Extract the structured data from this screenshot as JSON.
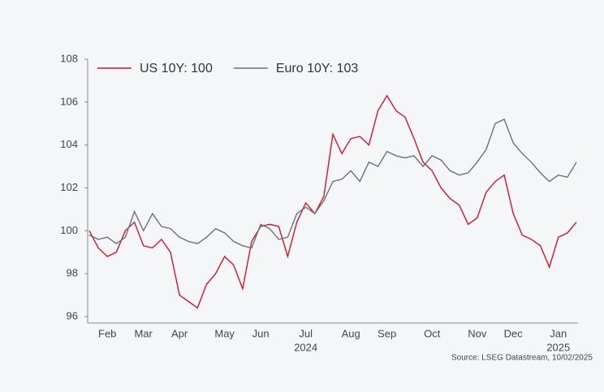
{
  "chart_data": {
    "type": "line",
    "categories": [
      null,
      null,
      "Feb",
      null,
      null,
      null,
      "Mar",
      null,
      null,
      null,
      "Apr",
      null,
      null,
      null,
      null,
      "May",
      null,
      null,
      null,
      "Jun",
      null,
      null,
      null,
      null,
      "Jul",
      null,
      null,
      null,
      null,
      "Aug",
      null,
      null,
      null,
      "Sep",
      null,
      null,
      null,
      null,
      "Oct",
      null,
      null,
      null,
      null,
      "Nov",
      null,
      null,
      null,
      "Dec",
      null,
      null,
      null,
      null,
      "Jan",
      null,
      null
    ],
    "series": [
      {
        "name": "US 10Y: 100",
        "color": "#d7142e",
        "values": [
          100,
          99.2,
          98.8,
          99.0,
          100.0,
          100.4,
          99.3,
          99.2,
          99.6,
          99.0,
          97.0,
          96.7,
          96.4,
          97.5,
          98.0,
          98.8,
          98.4,
          97.3,
          99.5,
          100.2,
          100.3,
          100.2,
          98.8,
          100.4,
          101.3,
          100.8,
          101.6,
          104.5,
          103.6,
          104.3,
          104.4,
          104.0,
          105.6,
          106.3,
          105.6,
          105.3,
          104.3,
          103.2,
          102.8,
          102.0,
          101.5,
          101.2,
          100.3,
          100.6,
          101.8,
          102.3,
          102.6,
          100.8,
          99.8,
          99.6,
          99.3,
          98.3,
          99.7,
          99.9,
          100.4
        ]
      },
      {
        "name": "Euro 10Y: 103",
        "color": "#6a7277",
        "values": [
          99.8,
          99.6,
          99.7,
          99.4,
          99.7,
          100.9,
          100.0,
          100.8,
          100.2,
          100.1,
          99.7,
          99.5,
          99.4,
          99.7,
          100.1,
          99.9,
          99.5,
          99.3,
          99.2,
          100.3,
          100.1,
          99.6,
          99.7,
          100.8,
          101.1,
          100.8,
          101.4,
          102.3,
          102.4,
          102.8,
          102.3,
          103.2,
          103.0,
          103.7,
          103.5,
          103.4,
          103.5,
          103.0,
          103.5,
          103.3,
          102.8,
          102.6,
          102.7,
          103.2,
          103.8,
          105.0,
          105.2,
          104.1,
          103.6,
          103.2,
          102.7,
          102.3,
          102.6,
          102.5,
          103.2
        ]
      }
    ],
    "ylim": [
      96,
      108
    ],
    "yticks": [
      96,
      98,
      100,
      102,
      104,
      106,
      108
    ],
    "year_labels": [
      {
        "text": "2024",
        "category": "Jul"
      },
      {
        "text": "2025",
        "category": "Jan"
      }
    ],
    "source": "Source: LSEG Datastream, 10/02/2025",
    "legend": "top-left"
  }
}
